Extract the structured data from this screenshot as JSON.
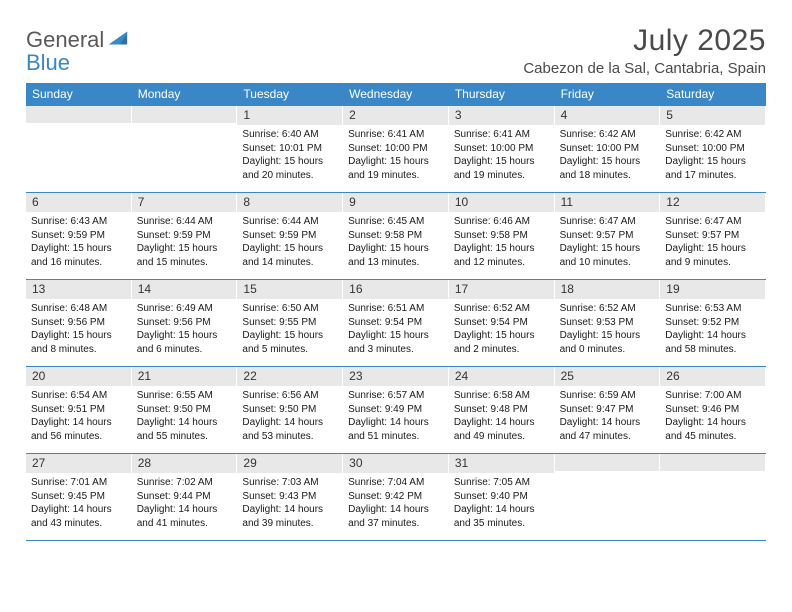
{
  "logo": {
    "word1": "General",
    "word2": "Blue"
  },
  "title": "July 2025",
  "location": "Cabezon de la Sal, Cantabria, Spain",
  "colors": {
    "header_bar": "#3a87c8",
    "daynum_bg": "#e8e8e8",
    "text": "#1a1a1a",
    "title_text": "#4a4a4a",
    "logo_gray": "#5a5a5a",
    "logo_blue": "#3a87c8",
    "row_border": "#3a87c8",
    "background": "#ffffff"
  },
  "weekdays": [
    "Sunday",
    "Monday",
    "Tuesday",
    "Wednesday",
    "Thursday",
    "Friday",
    "Saturday"
  ],
  "leading_blanks": 2,
  "days": [
    {
      "n": "1",
      "sr": "6:40 AM",
      "ss": "10:01 PM",
      "dl": "15 hours and 20 minutes."
    },
    {
      "n": "2",
      "sr": "6:41 AM",
      "ss": "10:00 PM",
      "dl": "15 hours and 19 minutes."
    },
    {
      "n": "3",
      "sr": "6:41 AM",
      "ss": "10:00 PM",
      "dl": "15 hours and 19 minutes."
    },
    {
      "n": "4",
      "sr": "6:42 AM",
      "ss": "10:00 PM",
      "dl": "15 hours and 18 minutes."
    },
    {
      "n": "5",
      "sr": "6:42 AM",
      "ss": "10:00 PM",
      "dl": "15 hours and 17 minutes."
    },
    {
      "n": "6",
      "sr": "6:43 AM",
      "ss": "9:59 PM",
      "dl": "15 hours and 16 minutes."
    },
    {
      "n": "7",
      "sr": "6:44 AM",
      "ss": "9:59 PM",
      "dl": "15 hours and 15 minutes."
    },
    {
      "n": "8",
      "sr": "6:44 AM",
      "ss": "9:59 PM",
      "dl": "15 hours and 14 minutes."
    },
    {
      "n": "9",
      "sr": "6:45 AM",
      "ss": "9:58 PM",
      "dl": "15 hours and 13 minutes."
    },
    {
      "n": "10",
      "sr": "6:46 AM",
      "ss": "9:58 PM",
      "dl": "15 hours and 12 minutes."
    },
    {
      "n": "11",
      "sr": "6:47 AM",
      "ss": "9:57 PM",
      "dl": "15 hours and 10 minutes."
    },
    {
      "n": "12",
      "sr": "6:47 AM",
      "ss": "9:57 PM",
      "dl": "15 hours and 9 minutes."
    },
    {
      "n": "13",
      "sr": "6:48 AM",
      "ss": "9:56 PM",
      "dl": "15 hours and 8 minutes."
    },
    {
      "n": "14",
      "sr": "6:49 AM",
      "ss": "9:56 PM",
      "dl": "15 hours and 6 minutes."
    },
    {
      "n": "15",
      "sr": "6:50 AM",
      "ss": "9:55 PM",
      "dl": "15 hours and 5 minutes."
    },
    {
      "n": "16",
      "sr": "6:51 AM",
      "ss": "9:54 PM",
      "dl": "15 hours and 3 minutes."
    },
    {
      "n": "17",
      "sr": "6:52 AM",
      "ss": "9:54 PM",
      "dl": "15 hours and 2 minutes."
    },
    {
      "n": "18",
      "sr": "6:52 AM",
      "ss": "9:53 PM",
      "dl": "15 hours and 0 minutes."
    },
    {
      "n": "19",
      "sr": "6:53 AM",
      "ss": "9:52 PM",
      "dl": "14 hours and 58 minutes."
    },
    {
      "n": "20",
      "sr": "6:54 AM",
      "ss": "9:51 PM",
      "dl": "14 hours and 56 minutes."
    },
    {
      "n": "21",
      "sr": "6:55 AM",
      "ss": "9:50 PM",
      "dl": "14 hours and 55 minutes."
    },
    {
      "n": "22",
      "sr": "6:56 AM",
      "ss": "9:50 PM",
      "dl": "14 hours and 53 minutes."
    },
    {
      "n": "23",
      "sr": "6:57 AM",
      "ss": "9:49 PM",
      "dl": "14 hours and 51 minutes."
    },
    {
      "n": "24",
      "sr": "6:58 AM",
      "ss": "9:48 PM",
      "dl": "14 hours and 49 minutes."
    },
    {
      "n": "25",
      "sr": "6:59 AM",
      "ss": "9:47 PM",
      "dl": "14 hours and 47 minutes."
    },
    {
      "n": "26",
      "sr": "7:00 AM",
      "ss": "9:46 PM",
      "dl": "14 hours and 45 minutes."
    },
    {
      "n": "27",
      "sr": "7:01 AM",
      "ss": "9:45 PM",
      "dl": "14 hours and 43 minutes."
    },
    {
      "n": "28",
      "sr": "7:02 AM",
      "ss": "9:44 PM",
      "dl": "14 hours and 41 minutes."
    },
    {
      "n": "29",
      "sr": "7:03 AM",
      "ss": "9:43 PM",
      "dl": "14 hours and 39 minutes."
    },
    {
      "n": "30",
      "sr": "7:04 AM",
      "ss": "9:42 PM",
      "dl": "14 hours and 37 minutes."
    },
    {
      "n": "31",
      "sr": "7:05 AM",
      "ss": "9:40 PM",
      "dl": "14 hours and 35 minutes."
    }
  ],
  "labels": {
    "sunrise": "Sunrise:",
    "sunset": "Sunset:",
    "daylight": "Daylight:"
  }
}
